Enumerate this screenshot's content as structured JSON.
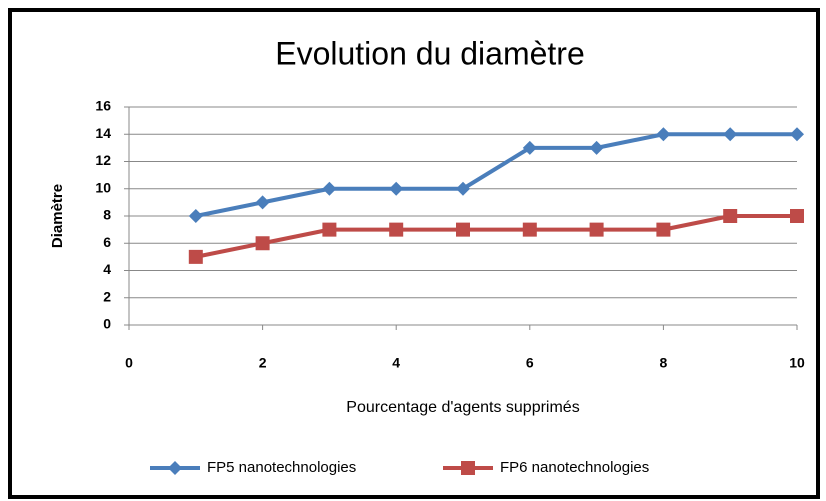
{
  "chart_data": {
    "type": "line",
    "title": "Evolution du diamètre",
    "x_label": "Pourcentage d'agents supprimés",
    "y_label": "Diamètre",
    "x": [
      1,
      2,
      3,
      4,
      5,
      6,
      7,
      8,
      9,
      10
    ],
    "series": [
      {
        "name": "FP5 nanotechnologies",
        "color": "#4a7ebb",
        "marker": "diamond",
        "values": [
          8,
          9,
          10,
          10,
          10,
          13,
          13,
          14,
          14,
          14
        ]
      },
      {
        "name": "FP6 nanotechnologies",
        "color": "#be4b48",
        "marker": "square",
        "values": [
          5,
          6,
          7,
          7,
          7,
          7,
          7,
          7,
          8,
          8
        ]
      }
    ],
    "xlim": [
      0,
      10
    ],
    "xticks": [
      0,
      2,
      4,
      6,
      8,
      10
    ],
    "ylim": [
      0,
      16
    ],
    "yticks": [
      0,
      2,
      4,
      6,
      8,
      10,
      12,
      14,
      16
    ],
    "grid": true,
    "legend": "bottom"
  }
}
